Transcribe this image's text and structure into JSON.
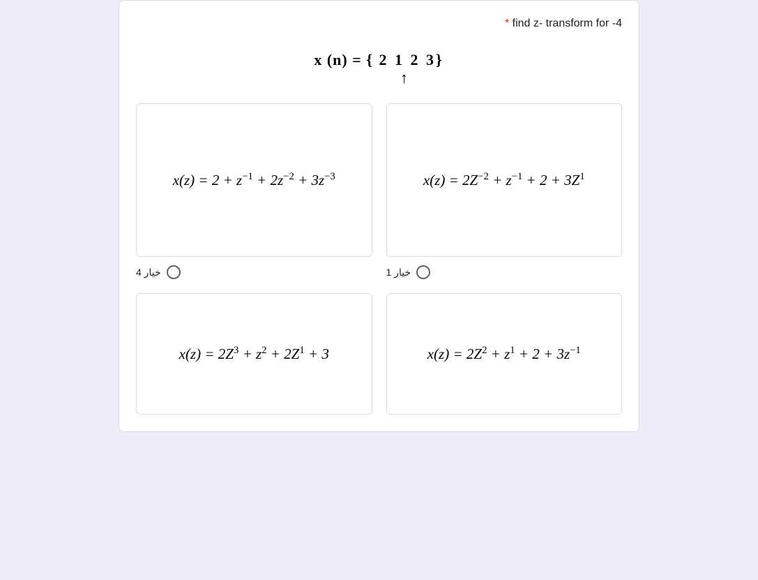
{
  "question": {
    "required_mark": "*",
    "title": "find z- transform for -4",
    "sequence_prefix": "x (n) = {",
    "sequence_values": "2   1   2   3}",
    "arrow": "↑"
  },
  "options": [
    {
      "id": 1,
      "label": "خيار 1",
      "formula_html": "x(z) = 2Z<sup class='rom'>−2</sup> + z<sup class='rom'>−1</sup> + 2 + 3Z<sup class='rom'>1</sup>"
    },
    {
      "id": 4,
      "label": "خيار 4",
      "formula_html": "x(z) = 2 + z<sup class='rom'>−1</sup> + 2z<sup class='rom'>−2</sup> + 3z<sup class='rom'>−3</sup>"
    },
    {
      "id": 2,
      "label": "",
      "formula_html": "x(z) = 2Z<sup class='rom'>2</sup> + z<sup class='rom'>1</sup> + 2 + 3z<sup class='rom'>−1</sup>"
    },
    {
      "id": 3,
      "label": "",
      "formula_html": "x(z) = 2Z<sup class='rom'>3</sup> + z<sup class='rom'>2</sup> + 2Z<sup class='rom'>1</sup> + 3"
    }
  ],
  "colors": {
    "page_bg": "#f0ebf8",
    "card_bg": "#ffffff",
    "border": "#dadce0",
    "text": "#202124",
    "required": "#d93025",
    "radio_border": "#5f6368"
  }
}
